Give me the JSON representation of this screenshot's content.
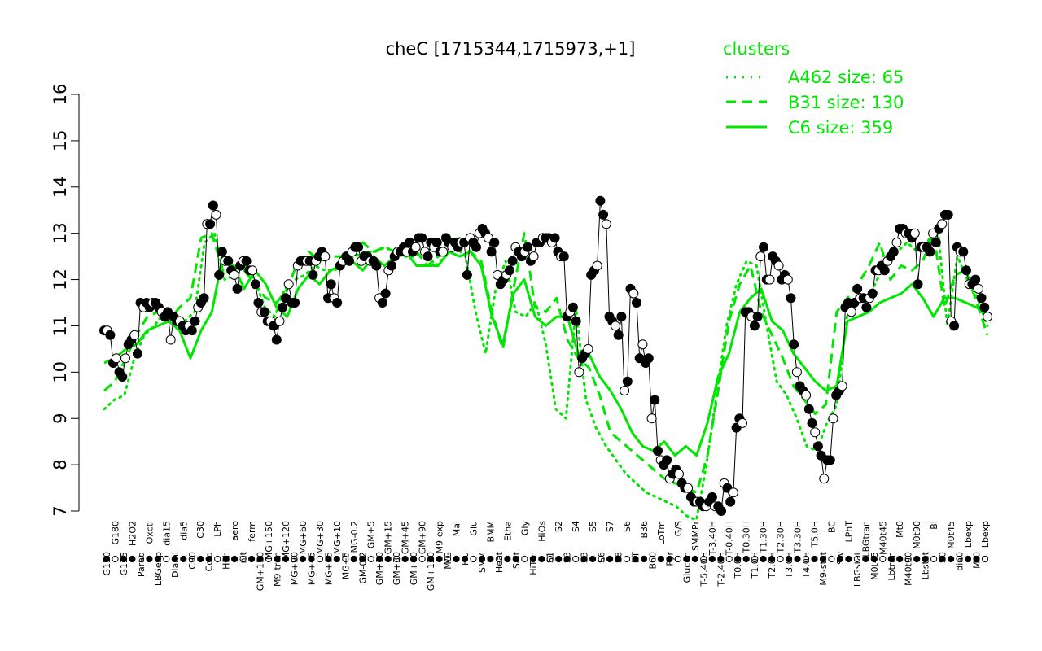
{
  "chart_data": {
    "type": "line",
    "title": "cheC [1715344,1715973,+1]",
    "ylim": [
      7,
      16
    ],
    "yticks": [
      7,
      8,
      9,
      10,
      11,
      12,
      13,
      14,
      15,
      16
    ],
    "legend": {
      "title": "clusters",
      "placement": "top-right",
      "entries": [
        {
          "label": "A462 size: 65",
          "style": "dotted"
        },
        {
          "label": "B31 size: 130",
          "style": "dashed"
        },
        {
          "label": "C6 size: 359",
          "style": "solid"
        }
      ]
    },
    "colors": {
      "cluster": "#00e600",
      "data_line": "#000000",
      "filled": "#000000",
      "open": "#ffffff"
    },
    "x_labels": [
      "G150",
      "G180",
      "G135",
      "H2O2",
      "Paraq",
      "Oxctl",
      "LBGexp",
      "dia15",
      "Diami",
      "dia5",
      "C90",
      "C30",
      "Cold",
      "LPh",
      "HPh",
      "aero",
      "nit",
      "ferm",
      "GM+150",
      "MG+150",
      "M9-tran",
      "MG+120",
      "MG+90",
      "MG+60",
      "MG+45",
      "MG+30",
      "MG+15",
      "MG+10",
      "MG+5",
      "MG-0.2",
      "GM-0.2",
      "GM+5",
      "GM+10",
      "GM+15",
      "GM+30",
      "GM+45",
      "GM+60",
      "GM+90",
      "GM+120",
      "M9-exp",
      "M/G",
      "Mal",
      "Fru",
      "Glu",
      "SMM",
      "BMM",
      "Heat",
      "Etha",
      "Salt",
      "Gly",
      "HiTm",
      "HiOs",
      "S1",
      "S2",
      "S3",
      "S4",
      "S3",
      "S5",
      "S6",
      "S7",
      "S8",
      "S6",
      "BT",
      "B36",
      "B60",
      "LoTm",
      "Pyr",
      "G/S",
      "Glucon",
      "SMMPr",
      "T-5.40H",
      "T-3.40H",
      "T-2.40H",
      "T-0.40H",
      "T0.0H",
      "T0.30H",
      "T1.0H",
      "T1.30H",
      "T2.0H",
      "T2.30H",
      "T3.0H",
      "T3.30H",
      "T4.0H",
      "T5.0H",
      "M9-stat",
      "BC",
      "Sw",
      "LPhT",
      "LBGstat",
      "LBGtran",
      "M0t45",
      "M40t45",
      "Lbtran",
      "Mt0",
      "M40t90",
      "M0t90",
      "Lbstat",
      "BI",
      "S0",
      "M0t45",
      "dia0",
      "Lbexp",
      "Mt0",
      "Lbexp"
    ],
    "series": [
      {
        "values": [
          10.9,
          10.9,
          10.8,
          10.2,
          10.3,
          10.0,
          9.9,
          10.3,
          10.6,
          10.7,
          10.8,
          10.4,
          11.5,
          11.4,
          11.5,
          11.4,
          11.5,
          11.5,
          11.4,
          11.3,
          11.2,
          11.3,
          10.7,
          11.2,
          11.1,
          11.1,
          11.0,
          10.9,
          11.0,
          10.9,
          11.1,
          11.4,
          11.5,
          11.6,
          13.2,
          13.2,
          13.6,
          13.4,
          12.1,
          12.6,
          12.4,
          12.4,
          12.2,
          12.1,
          11.8,
          12.3,
          12.4,
          12.4,
          12.2,
          12.2,
          11.9,
          11.5,
          11.3,
          11.3,
          11.1,
          11.1,
          11.0,
          10.7,
          11.1,
          11.4,
          11.6,
          11.9,
          11.5,
          11.5,
          12.3,
          12.4,
          12.4,
          12.4,
          12.4,
          12.1,
          12.4,
          12.5,
          12.6,
          12.5,
          11.6,
          11.9,
          11.6,
          11.5,
          12.3,
          12.4,
          12.5,
          12.4,
          12.6,
          12.7,
          12.7,
          12.4,
          12.5,
          12.5,
          12.4,
          12.4,
          12.3,
          11.6,
          11.5,
          11.7,
          12.2,
          12.3,
          12.5,
          12.6,
          12.6,
          12.7,
          12.6,
          12.8,
          12.6,
          12.7,
          12.9,
          12.9,
          12.6,
          12.5,
          12.8,
          12.7,
          12.8,
          12.6,
          12.6,
          12.9,
          12.8,
          12.7,
          12.8,
          12.7,
          12.8,
          12.8,
          12.1,
          12.9,
          12.8,
          12.7,
          13.0,
          13.1,
          13.0,
          12.9,
          12.6,
          12.8,
          12.1,
          11.9,
          12.0,
          12.1,
          12.2,
          12.4,
          12.7,
          12.6,
          12.5,
          12.6,
          12.7,
          12.4,
          12.5,
          12.8,
          12.8,
          12.9,
          12.9,
          12.9,
          12.8,
          12.9,
          12.6,
          12.5,
          12.5,
          11.2,
          11.3,
          11.4,
          11.1,
          10.0,
          10.3,
          10.4,
          10.5,
          12.1,
          12.2,
          12.3,
          13.7,
          13.4,
          13.2,
          11.2,
          11.1,
          11.0,
          10.8,
          11.2,
          9.6,
          9.8,
          11.8,
          11.7,
          11.5,
          10.3,
          10.6,
          10.2,
          10.3,
          9.0,
          9.4,
          8.3,
          8.1,
          8.0,
          8.1,
          7.7,
          7.8,
          7.9,
          7.8,
          7.6,
          7.5,
          7.5,
          7.3,
          7.2,
          7.2,
          7.2,
          7.1,
          7.1,
          7.2,
          7.3,
          7.1,
          7.1,
          7.0,
          7.6,
          7.5,
          7.2,
          7.4,
          8.8,
          9.0,
          8.9,
          11.3,
          11.3,
          11.2,
          11.0,
          11.2,
          12.5,
          12.7,
          12.0,
          12.0,
          12.5,
          12.4,
          12.3,
          12.0,
          12.1,
          12.0,
          11.6,
          10.6,
          10.0,
          9.7,
          9.6,
          9.5,
          9.2,
          8.9,
          8.7,
          8.4,
          8.2,
          7.7,
          8.1,
          8.1,
          9.0,
          9.5,
          9.6,
          9.7,
          11.4,
          11.5,
          11.3,
          11.5,
          11.8,
          11.6,
          11.6,
          11.4,
          11.6,
          11.7,
          12.2,
          12.2,
          12.3,
          12.2,
          12.4,
          12.5,
          12.6,
          12.8,
          13.1,
          13.1,
          13.0,
          13.0,
          12.9,
          13.0,
          11.9,
          12.7,
          12.7,
          12.7,
          12.6,
          13.0,
          12.8,
          13.1,
          13.2,
          13.4,
          13.4,
          11.1,
          11.0,
          12.7,
          12.6,
          12.6,
          12.2,
          11.9,
          11.9,
          12.0,
          11.8,
          11.6,
          11.4,
          11.2
        ]
      },
      {
        "name": "A462 size: 65",
        "style": "dotted",
        "values": [
          9.2,
          9.4,
          9.5,
          10.3,
          10.8,
          11.0,
          11.3,
          11.3,
          11.1,
          11.3,
          12.8,
          13.0,
          12.0,
          12.1,
          12.3,
          12.0,
          11.4,
          11.2,
          11.8,
          12.0,
          12.1,
          12.3,
          12.2,
          12.2,
          12.4,
          12.5,
          12.6,
          12.6,
          12.7,
          12.6,
          12.5,
          12.5,
          12.6,
          12.3,
          12.5,
          12.7,
          12.5,
          11.3,
          10.4,
          11.8,
          12.4,
          11.3,
          11.2,
          11.5,
          10.6,
          9.2,
          9.0,
          11.4,
          9.4,
          8.8,
          8.4,
          8.1,
          7.8,
          7.6,
          7.4,
          7.3,
          7.2,
          7.1,
          6.9,
          6.8,
          8.0,
          9.5,
          11.0,
          11.9,
          12.4,
          12.3,
          11.0,
          9.8,
          9.5,
          9.0,
          8.4,
          8.3,
          8.9,
          9.3,
          11.2,
          11.6,
          11.5,
          12.0,
          12.4,
          12.6,
          12.8,
          12.6,
          12.8,
          13.2,
          11.0,
          12.5,
          12.0,
          11.6,
          11.0
        ]
      },
      {
        "name": "B31 size: 130",
        "style": "dashed",
        "values": [
          9.6,
          9.8,
          10.3,
          10.8,
          11.2,
          11.3,
          11.1,
          11.4,
          11.6,
          12.9,
          13.0,
          12.2,
          12.3,
          12.2,
          11.9,
          11.6,
          11.5,
          11.8,
          12.4,
          12.6,
          12.4,
          12.5,
          12.5,
          12.6,
          12.8,
          12.6,
          12.7,
          12.6,
          12.5,
          12.6,
          12.3,
          12.5,
          12.6,
          12.9,
          12.6,
          12.4,
          11.3,
          10.5,
          11.8,
          13.0,
          11.4,
          11.3,
          11.6,
          10.7,
          10.3,
          10.1,
          9.5,
          8.7,
          8.5,
          8.3,
          8.1,
          7.9,
          7.7,
          7.6,
          7.5,
          7.4,
          8.2,
          9.6,
          11.1,
          11.9,
          12.3,
          11.3,
          10.8,
          10.3,
          9.7,
          9.4,
          9.1,
          9.3,
          11.3,
          11.6,
          11.9,
          12.3,
          12.8,
          12.0,
          12.3,
          12.2,
          12.4,
          13.0,
          11.4,
          12.1,
          12.2,
          11.5,
          10.8
        ]
      },
      {
        "name": "C6 size: 359",
        "style": "solid",
        "values": [
          10.2,
          10.3,
          10.5,
          10.6,
          10.9,
          11.0,
          11.1,
          10.9,
          10.3,
          10.9,
          11.3,
          12.5,
          12.3,
          11.8,
          12.2,
          11.9,
          11.4,
          11.2,
          11.8,
          12.1,
          11.9,
          12.2,
          12.3,
          12.4,
          12.2,
          12.5,
          12.3,
          12.5,
          12.6,
          12.3,
          12.3,
          12.3,
          12.6,
          12.5,
          12.6,
          12.3,
          11.2,
          10.6,
          11.7,
          12.0,
          11.2,
          11.0,
          11.2,
          11.2,
          10.4,
          10.4,
          9.9,
          9.6,
          9.2,
          8.7,
          8.4,
          8.3,
          8.5,
          8.2,
          8.4,
          8.2,
          8.9,
          9.9,
          10.4,
          11.3,
          11.6,
          11.8,
          11.1,
          10.9,
          10.4,
          10.1,
          9.8,
          9.6,
          9.7,
          11.1,
          11.2,
          11.3,
          11.5,
          11.6,
          11.7,
          11.9,
          11.6,
          11.2,
          11.6,
          11.6,
          11.5,
          11.4,
          11.2
        ]
      }
    ]
  }
}
